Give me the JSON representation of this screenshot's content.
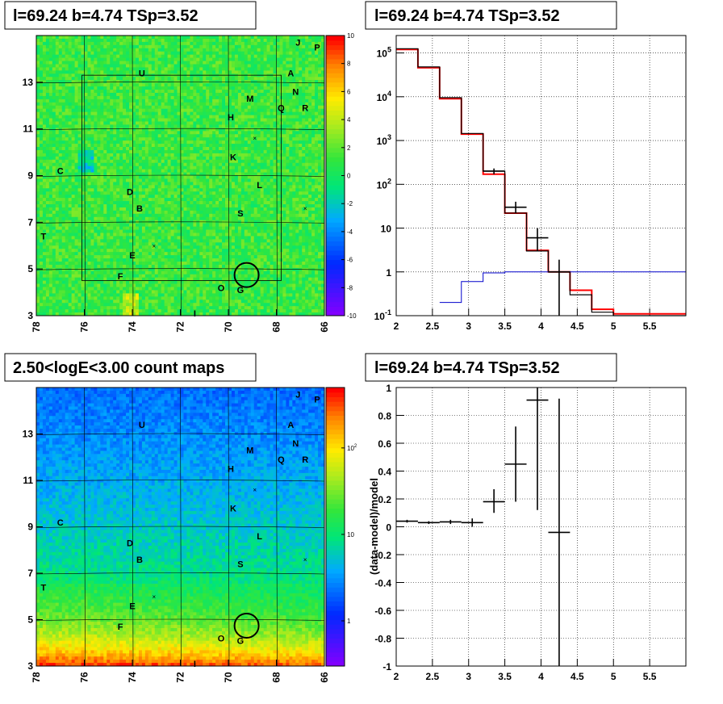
{
  "chart_data": [
    {
      "type": "heatmap",
      "title": "l=69.24 b=4.74 TSp=3.52",
      "x_ticks": [
        "78",
        "76",
        "74",
        "72",
        "70",
        "68",
        "66"
      ],
      "y_ticks": [
        "3",
        "5",
        "7",
        "9",
        "11",
        "13"
      ],
      "xlim": [
        78,
        66
      ],
      "ylim": [
        3,
        15
      ],
      "colorbar": {
        "min": -10,
        "max": 10,
        "ticks": [
          "-10",
          "-8",
          "-6",
          "-4",
          "-2",
          "0",
          "2",
          "4",
          "6",
          "8",
          "10"
        ],
        "scale": "linear"
      },
      "sources": [
        {
          "name": "J",
          "l": 67.1,
          "b": 14.7
        },
        {
          "name": "P",
          "l": 66.3,
          "b": 14.5
        },
        {
          "name": "U",
          "l": 73.6,
          "b": 13.4
        },
        {
          "name": "A",
          "l": 67.4,
          "b": 13.4
        },
        {
          "name": "N",
          "l": 67.2,
          "b": 12.6
        },
        {
          "name": "M",
          "l": 69.1,
          "b": 12.3
        },
        {
          "name": "Q",
          "l": 67.8,
          "b": 11.9
        },
        {
          "name": "R",
          "l": 66.8,
          "b": 11.9
        },
        {
          "name": "H",
          "l": 69.9,
          "b": 11.5
        },
        {
          "name": "K",
          "l": 69.8,
          "b": 9.8
        },
        {
          "name": "C",
          "l": 77.0,
          "b": 9.2
        },
        {
          "name": "L",
          "l": 68.7,
          "b": 8.6
        },
        {
          "name": "D",
          "l": 74.1,
          "b": 8.3
        },
        {
          "name": "B",
          "l": 73.7,
          "b": 7.6
        },
        {
          "name": "S",
          "l": 69.5,
          "b": 7.4
        },
        {
          "name": "T",
          "l": 77.7,
          "b": 6.4
        },
        {
          "name": "E",
          "l": 74.0,
          "b": 5.6
        },
        {
          "name": "F",
          "l": 74.5,
          "b": 4.7
        },
        {
          "name": "O",
          "l": 70.3,
          "b": 4.2
        },
        {
          "name": "G",
          "l": 69.5,
          "b": 4.1
        },
        {
          "name": "I",
          "l": 71.4,
          "b": 3.1
        }
      ],
      "crosses": [
        {
          "l": 68.9,
          "b": 10.6
        },
        {
          "l": 66.8,
          "b": 7.6
        },
        {
          "l": 73.1,
          "b": 6.0
        }
      ],
      "circle": {
        "l": 69.24,
        "b": 4.74
      }
    },
    {
      "type": "line",
      "title": "l=69.24 b=4.74 TSp=3.52",
      "x_ticks": [
        "2",
        "2.5",
        "3",
        "3.5",
        "4",
        "4.5",
        "5",
        "5.5"
      ],
      "y_ticks": [
        "10^-1",
        "1",
        "10",
        "10^2",
        "10^3",
        "10^4",
        "10^5"
      ],
      "xlim": [
        2,
        6
      ],
      "ylim": [
        0.1,
        250000
      ],
      "yscale": "log",
      "series": [
        {
          "color": "#ff0000",
          "edges": [
            2,
            2.3,
            2.6,
            2.9,
            3.2,
            3.5,
            3.8,
            4.1,
            4.4,
            4.7,
            5.0,
            6.0
          ],
          "values": [
            120000,
            46000,
            9000,
            1400,
            170,
            22,
            3.1,
            1.0,
            0.38,
            0.14,
            0.11
          ]
        },
        {
          "color": "#000000",
          "edges": [
            2,
            2.3,
            2.6,
            2.9,
            3.2,
            3.5,
            3.8,
            4.1,
            4.4,
            4.7,
            5.0,
            6.0
          ],
          "values": [
            125000,
            48000,
            9500,
            1450,
            200,
            22,
            3.0,
            1.0,
            0.3,
            0.12,
            0.1
          ]
        },
        {
          "color": "#0000cc",
          "edges": [
            2.6,
            2.9,
            3.2,
            3.5,
            3.8,
            4.1,
            4.4,
            6.0
          ],
          "values": [
            0.2,
            0.6,
            0.95,
            1.0,
            1.0,
            1.0,
            1.0
          ]
        }
      ],
      "points": [
        {
          "x": 3.35,
          "xerr": 0.15,
          "y": 200,
          "ylo": 170,
          "yhi": 230
        },
        {
          "x": 3.65,
          "xerr": 0.15,
          "y": 30,
          "ylo": 22,
          "yhi": 40
        },
        {
          "x": 3.95,
          "xerr": 0.15,
          "y": 6,
          "ylo": 3,
          "yhi": 10
        },
        {
          "x": 4.25,
          "xerr": 0.15,
          "y": 1,
          "ylo": 0.1,
          "yhi": 1.9
        }
      ]
    },
    {
      "type": "heatmap",
      "title": "2.50<logE<3.00 count maps",
      "x_ticks": [
        "78",
        "76",
        "74",
        "72",
        "70",
        "68",
        "66"
      ],
      "y_ticks": [
        "3",
        "5",
        "7",
        "9",
        "11",
        "13"
      ],
      "xlim": [
        78,
        66
      ],
      "ylim": [
        3,
        15
      ],
      "colorbar": {
        "min": 0.3,
        "max": 500,
        "ticks": [
          "1",
          "10",
          "10^2"
        ],
        "scale": "log"
      },
      "sources": [
        {
          "name": "J",
          "l": 67.1,
          "b": 14.7
        },
        {
          "name": "P",
          "l": 66.3,
          "b": 14.5
        },
        {
          "name": "U",
          "l": 73.6,
          "b": 13.4
        },
        {
          "name": "A",
          "l": 67.4,
          "b": 13.4
        },
        {
          "name": "N",
          "l": 67.2,
          "b": 12.6
        },
        {
          "name": "M",
          "l": 69.1,
          "b": 12.3
        },
        {
          "name": "Q",
          "l": 67.8,
          "b": 11.9
        },
        {
          "name": "R",
          "l": 66.8,
          "b": 11.9
        },
        {
          "name": "H",
          "l": 69.9,
          "b": 11.5
        },
        {
          "name": "K",
          "l": 69.8,
          "b": 9.8
        },
        {
          "name": "C",
          "l": 77.0,
          "b": 9.2
        },
        {
          "name": "L",
          "l": 68.7,
          "b": 8.6
        },
        {
          "name": "D",
          "l": 74.1,
          "b": 8.3
        },
        {
          "name": "B",
          "l": 73.7,
          "b": 7.6
        },
        {
          "name": "S",
          "l": 69.5,
          "b": 7.4
        },
        {
          "name": "T",
          "l": 77.7,
          "b": 6.4
        },
        {
          "name": "E",
          "l": 74.0,
          "b": 5.6
        },
        {
          "name": "F",
          "l": 74.5,
          "b": 4.7
        },
        {
          "name": "O",
          "l": 70.3,
          "b": 4.2
        },
        {
          "name": "G",
          "l": 69.5,
          "b": 4.1
        },
        {
          "name": "I",
          "l": 71.4,
          "b": 3.1
        }
      ],
      "crosses": [
        {
          "l": 68.9,
          "b": 10.6
        },
        {
          "l": 66.8,
          "b": 7.6
        },
        {
          "l": 73.1,
          "b": 6.0
        }
      ],
      "circle": {
        "l": 69.24,
        "b": 4.74
      }
    },
    {
      "type": "scatter",
      "title": "l=69.24 b=4.74 TSp=3.52",
      "ylabel": "(data-model)/model",
      "x_ticks": [
        "2",
        "2.5",
        "3",
        "3.5",
        "4",
        "4.5",
        "5",
        "5.5"
      ],
      "y_ticks": [
        "-1",
        "-0.8",
        "-0.6",
        "-0.4",
        "-0.2",
        "0",
        "0.2",
        "0.4",
        "0.6",
        "0.8",
        "1"
      ],
      "xlim": [
        2,
        6
      ],
      "ylim": [
        -1,
        1
      ],
      "points": [
        {
          "x": 2.15,
          "xerr": 0.15,
          "y": 0.04,
          "ylo": 0.03,
          "yhi": 0.05
        },
        {
          "x": 2.45,
          "xerr": 0.15,
          "y": 0.03,
          "ylo": 0.02,
          "yhi": 0.04
        },
        {
          "x": 2.75,
          "xerr": 0.15,
          "y": 0.035,
          "ylo": 0.02,
          "yhi": 0.05
        },
        {
          "x": 3.05,
          "xerr": 0.15,
          "y": 0.03,
          "ylo": 0.0,
          "yhi": 0.06
        },
        {
          "x": 3.35,
          "xerr": 0.15,
          "y": 0.18,
          "ylo": 0.1,
          "yhi": 0.27
        },
        {
          "x": 3.65,
          "xerr": 0.15,
          "y": 0.45,
          "ylo": 0.18,
          "yhi": 0.72
        },
        {
          "x": 3.95,
          "xerr": 0.15,
          "y": 0.91,
          "ylo": 0.12,
          "yhi": 1.0
        },
        {
          "x": 4.25,
          "xerr": 0.15,
          "y": -0.04,
          "ylo": -1.0,
          "yhi": 0.92
        }
      ]
    }
  ]
}
